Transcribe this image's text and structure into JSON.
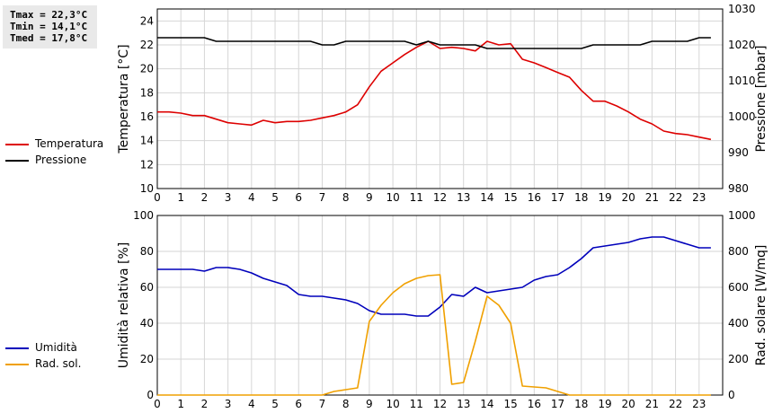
{
  "stats": {
    "tmax": "Tmax = 22,3°C",
    "tmin": "Tmin = 14,1°C",
    "tmed": "Tmed = 17,8°C"
  },
  "chart_data": [
    {
      "type": "line",
      "y2label": "Pressione [mbar]",
      "ylabel": "Temperatura [°C]",
      "ylim": [
        10,
        25
      ],
      "y2lim": [
        980,
        1030
      ],
      "xlim": [
        0,
        24
      ],
      "xticks": [
        "0",
        "1",
        "2",
        "3",
        "4",
        "5",
        "6",
        "7",
        "8",
        "9",
        "10",
        "11",
        "12",
        "13",
        "14",
        "15",
        "16",
        "17",
        "18",
        "19",
        "20",
        "21",
        "22",
        "23"
      ],
      "yticks": [
        "10",
        "12",
        "14",
        "16",
        "18",
        "20",
        "22",
        "24"
      ],
      "y2ticks": [
        "980",
        "990",
        "1000",
        "1010",
        "1020",
        "1030"
      ],
      "grid": true,
      "legend": "left",
      "series": [
        {
          "name": "Temperatura",
          "axis": "left",
          "color": "#dd0000",
          "x": [
            0,
            0.5,
            1,
            1.5,
            2,
            2.5,
            3,
            3.5,
            4,
            4.5,
            5,
            5.5,
            6,
            6.5,
            7,
            7.5,
            8,
            8.5,
            9,
            9.5,
            10,
            10.5,
            11,
            11.5,
            12,
            12.5,
            13,
            13.5,
            14,
            14.5,
            15,
            15.5,
            16,
            16.5,
            17,
            17.5,
            18,
            18.5,
            19,
            19.5,
            20,
            20.5,
            21,
            21.5,
            22,
            22.5,
            23,
            23.5
          ],
          "values": [
            16.4,
            16.4,
            16.3,
            16.1,
            16.1,
            15.8,
            15.5,
            15.4,
            15.3,
            15.7,
            15.5,
            15.6,
            15.6,
            15.7,
            15.9,
            16.1,
            16.4,
            17.0,
            18.5,
            19.8,
            20.5,
            21.2,
            21.8,
            22.3,
            21.7,
            21.8,
            21.7,
            21.5,
            22.3,
            22.0,
            22.1,
            20.8,
            20.5,
            20.1,
            19.7,
            19.3,
            18.2,
            17.3,
            17.3,
            16.9,
            16.4,
            15.8,
            15.4,
            14.8,
            14.6,
            14.5,
            14.3,
            14.1
          ]
        },
        {
          "name": "Pressione",
          "axis": "right",
          "color": "#000000",
          "x": [
            0,
            0.5,
            1,
            1.5,
            2,
            2.5,
            3,
            3.5,
            4,
            4.5,
            5,
            5.5,
            6,
            6.5,
            7,
            7.5,
            8,
            8.5,
            9,
            9.5,
            10,
            10.5,
            11,
            11.5,
            12,
            12.5,
            13,
            13.5,
            14,
            14.5,
            15,
            15.5,
            16,
            16.5,
            17,
            17.5,
            18,
            18.5,
            19,
            19.5,
            20,
            20.5,
            21,
            21.5,
            22,
            22.5,
            23,
            23.5
          ],
          "values": [
            1022,
            1022,
            1022,
            1022,
            1022,
            1021,
            1021,
            1021,
            1021,
            1021,
            1021,
            1021,
            1021,
            1021,
            1020,
            1020,
            1021,
            1021,
            1021,
            1021,
            1021,
            1021,
            1020,
            1021,
            1020,
            1020,
            1020,
            1020,
            1019,
            1019,
            1019,
            1019,
            1019,
            1019,
            1019,
            1019,
            1019,
            1020,
            1020,
            1020,
            1020,
            1020,
            1021,
            1021,
            1021,
            1021,
            1022,
            1022
          ]
        }
      ]
    },
    {
      "type": "line",
      "ylabel": "Umidità relativa [%]",
      "y2label": "Rad. solare [W/mq]",
      "ylim": [
        0,
        100
      ],
      "y2lim": [
        0,
        1000
      ],
      "xlim": [
        0,
        24
      ],
      "xticks": [
        "0",
        "1",
        "2",
        "3",
        "4",
        "5",
        "6",
        "7",
        "8",
        "9",
        "10",
        "11",
        "12",
        "13",
        "14",
        "15",
        "16",
        "17",
        "18",
        "19",
        "20",
        "21",
        "22",
        "23"
      ],
      "yticks": [
        "0",
        "20",
        "40",
        "60",
        "80",
        "100"
      ],
      "y2ticks": [
        "0",
        "200",
        "400",
        "600",
        "800",
        "1000"
      ],
      "grid": true,
      "legend": "left",
      "series": [
        {
          "name": "Umidità",
          "axis": "left",
          "color": "#0000bb",
          "x": [
            0,
            0.5,
            1,
            1.5,
            2,
            2.5,
            3,
            3.5,
            4,
            4.5,
            5,
            5.5,
            6,
            6.5,
            7,
            7.5,
            8,
            8.5,
            9,
            9.5,
            10,
            10.5,
            11,
            11.5,
            12,
            12.5,
            13,
            13.5,
            14,
            14.5,
            15,
            15.5,
            16,
            16.5,
            17,
            17.5,
            18,
            18.5,
            19,
            19.5,
            20,
            20.5,
            21,
            21.5,
            22,
            22.5,
            23,
            23.5
          ],
          "values": [
            70,
            70,
            70,
            70,
            69,
            71,
            71,
            70,
            68,
            65,
            63,
            61,
            56,
            55,
            55,
            54,
            53,
            51,
            47,
            45,
            45,
            45,
            44,
            44,
            49,
            56,
            55,
            60,
            57,
            58,
            59,
            60,
            64,
            66,
            67,
            71,
            76,
            82,
            83,
            84,
            85,
            87,
            88,
            88,
            86,
            84,
            82,
            82
          ]
        },
        {
          "name": "Rad. sol.",
          "axis": "right",
          "color": "#f0a000",
          "x": [
            0,
            0.5,
            1,
            1.5,
            2,
            2.5,
            3,
            3.5,
            4,
            4.5,
            5,
            5.5,
            6,
            6.5,
            7,
            7.5,
            8,
            8.5,
            9,
            9.5,
            10,
            10.5,
            11,
            11.5,
            12,
            12.5,
            13,
            13.5,
            14,
            14.5,
            15,
            15.5,
            16,
            16.5,
            17,
            17.5,
            18,
            18.5,
            19,
            19.5,
            20,
            20.5,
            21,
            21.5,
            22,
            22.5,
            23,
            23.5
          ],
          "values": [
            0,
            0,
            0,
            0,
            0,
            0,
            0,
            0,
            0,
            0,
            0,
            0,
            0,
            0,
            0,
            20,
            30,
            40,
            410,
            500,
            570,
            620,
            650,
            665,
            670,
            60,
            70,
            300,
            550,
            500,
            400,
            50,
            45,
            40,
            20,
            0,
            0,
            0,
            0,
            0,
            0,
            0,
            0,
            0,
            0,
            0,
            0,
            0
          ]
        }
      ]
    }
  ]
}
